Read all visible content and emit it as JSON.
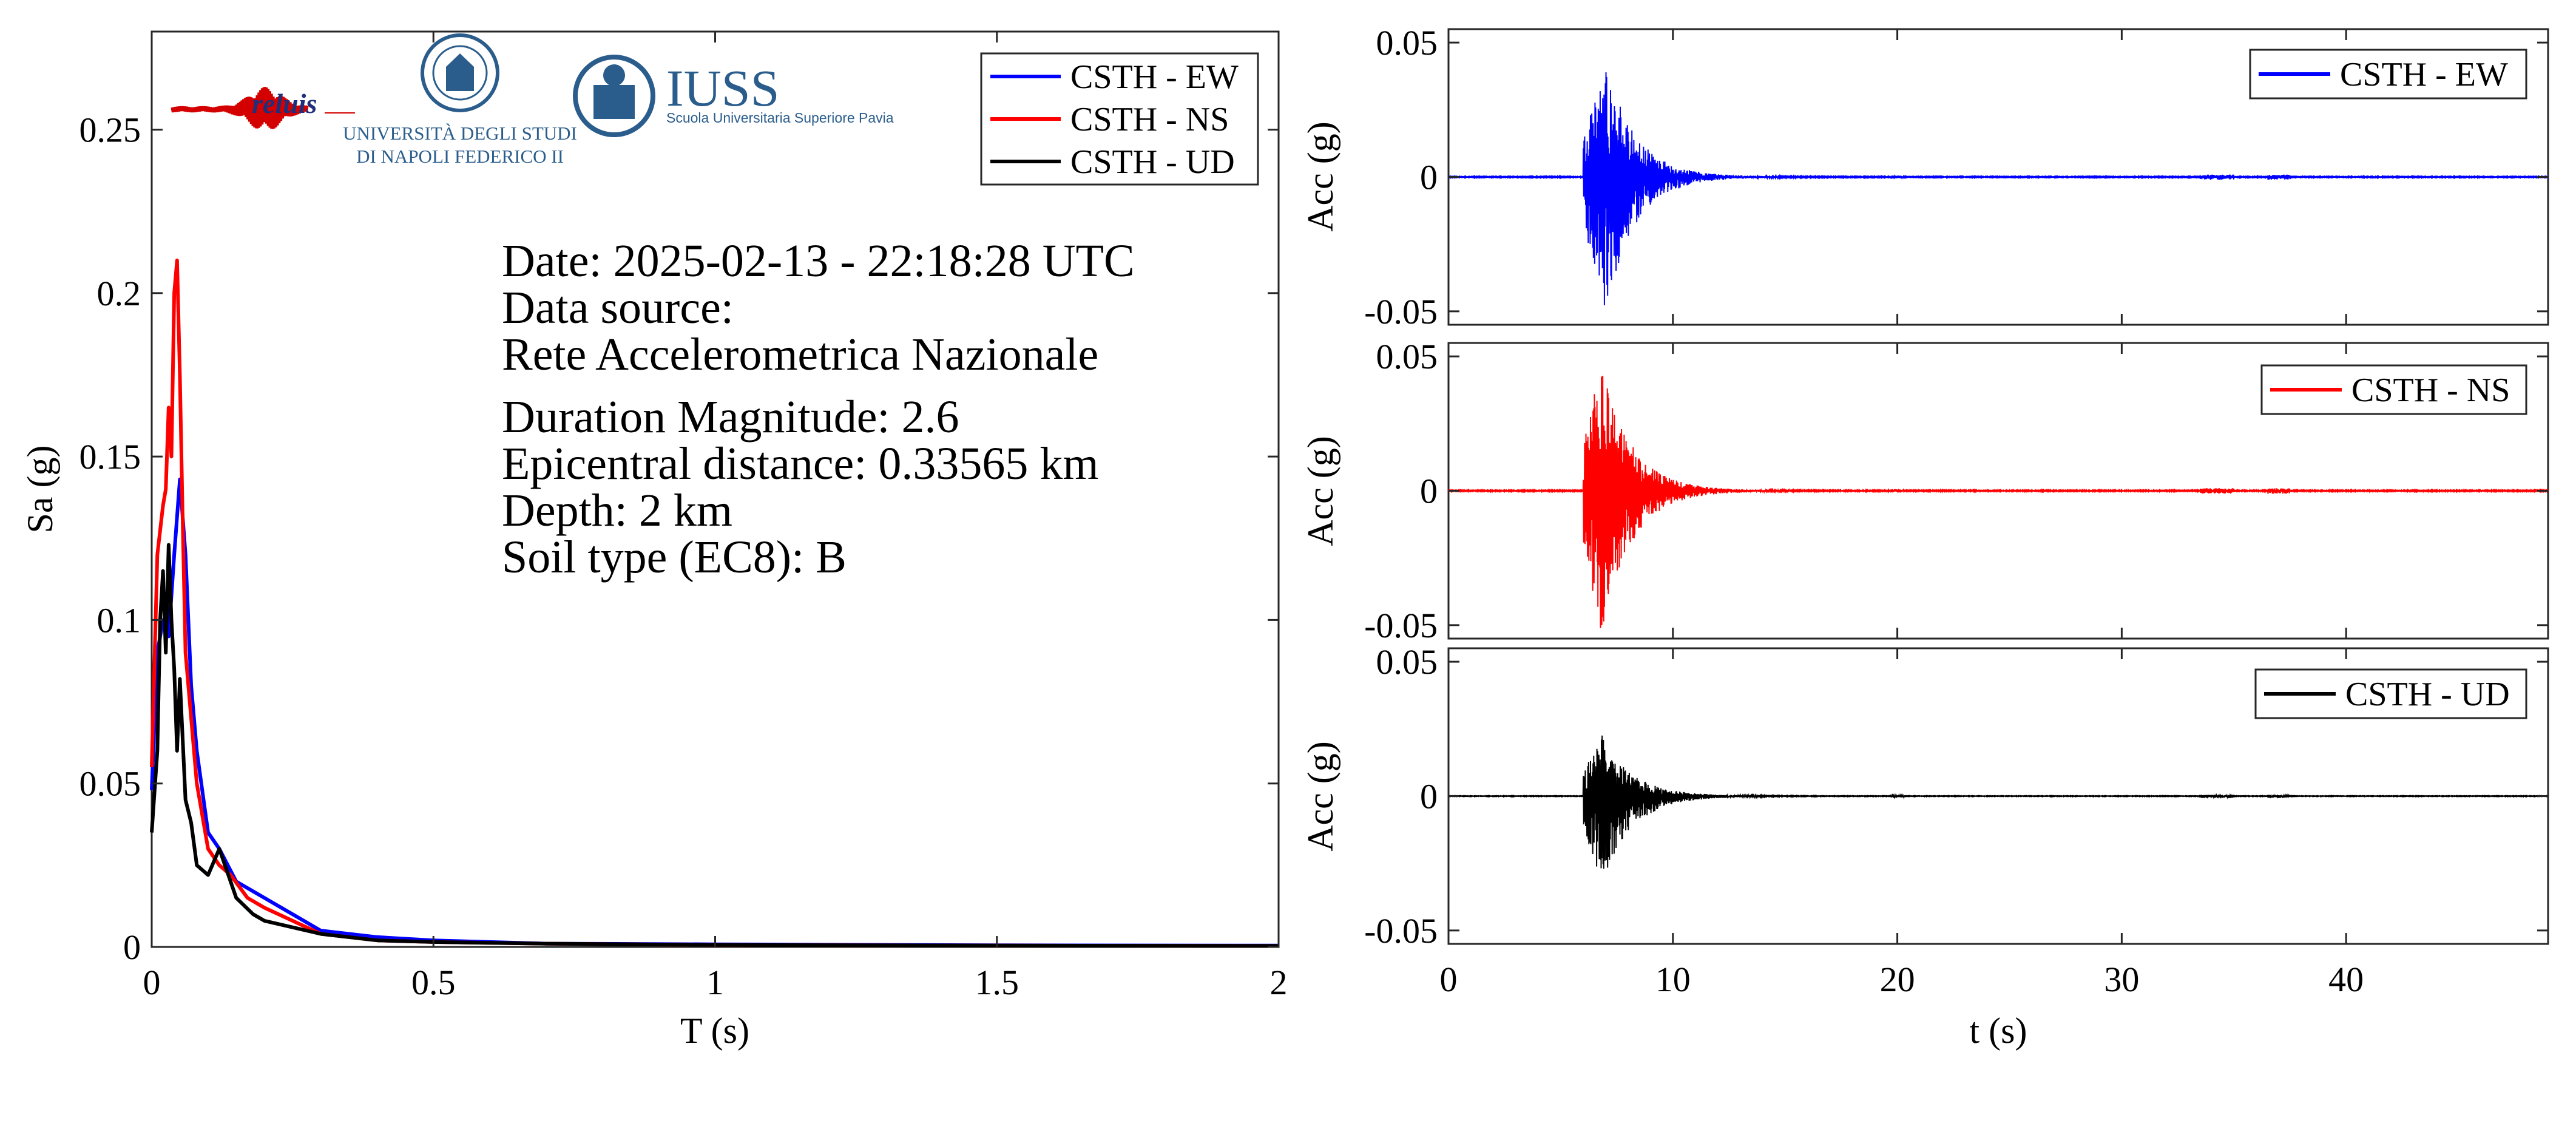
{
  "colors": {
    "ew": "#0000ff",
    "ns": "#ff0000",
    "ud": "#000000",
    "iuss": "#2b5d8c"
  },
  "logos": {
    "reluis": {
      "text": "reluis"
    },
    "unina": {
      "line1": "UNIVERSITÀ DEGLI STUDI",
      "line2": "DI NAPOLI FEDERICO II"
    },
    "iuss": {
      "title": "IUSS",
      "subtitle": "Scuola Universitaria Superiore Pavia"
    }
  },
  "info": {
    "date": "Date: 2025-02-13 - 22:18:28 UTC",
    "source_label": "Data source:",
    "source_name": "Rete Accelerometrica Nazionale",
    "magnitude": "Duration Magnitude: 2.6",
    "distance": "Epicentral distance: 0.33565 km",
    "depth": "Depth: 2 km",
    "soil": "Soil type (EC8): B"
  },
  "chart_data": [
    {
      "type": "line",
      "xlabel": "T (s)",
      "ylabel": "Sa (g)",
      "xlim": [
        0,
        2
      ],
      "ylim": [
        0,
        0.28
      ],
      "xticks": [
        0,
        0.5,
        1,
        1.5,
        2
      ],
      "xtick_labels": [
        "0",
        "0.5",
        "1",
        "1.5",
        "2"
      ],
      "yticks": [
        0,
        0.05,
        0.1,
        0.15,
        0.2,
        0.25
      ],
      "ytick_labels": [
        "0",
        "0.05",
        "0.1",
        "0.15",
        "0.2",
        "0.25"
      ],
      "legend": "top-right",
      "series": [
        {
          "name": "CSTH - EW",
          "color": "#0000ff",
          "x": [
            0,
            0.01,
            0.02,
            0.03,
            0.04,
            0.05,
            0.06,
            0.07,
            0.08,
            0.1,
            0.12,
            0.15,
            0.18,
            0.2,
            0.25,
            0.3,
            0.4,
            0.5,
            0.7,
            1.0,
            1.5,
            2.0
          ],
          "y": [
            0.048,
            0.09,
            0.1,
            0.095,
            0.12,
            0.143,
            0.12,
            0.08,
            0.06,
            0.035,
            0.03,
            0.02,
            0.017,
            0.015,
            0.01,
            0.005,
            0.003,
            0.002,
            0.001,
            0.0008,
            0.0005,
            0.0004
          ]
        },
        {
          "name": "CSTH - NS",
          "color": "#ff0000",
          "x": [
            0,
            0.01,
            0.02,
            0.025,
            0.03,
            0.035,
            0.04,
            0.045,
            0.05,
            0.055,
            0.06,
            0.07,
            0.08,
            0.1,
            0.12,
            0.14,
            0.17,
            0.2,
            0.25,
            0.3,
            0.4,
            0.5,
            0.7,
            1.0,
            1.5,
            2.0
          ],
          "y": [
            0.055,
            0.12,
            0.135,
            0.14,
            0.165,
            0.15,
            0.2,
            0.21,
            0.175,
            0.13,
            0.09,
            0.07,
            0.05,
            0.03,
            0.025,
            0.022,
            0.015,
            0.012,
            0.008,
            0.004,
            0.002,
            0.0015,
            0.001,
            0.0006,
            0.0004,
            0.0003
          ]
        },
        {
          "name": "CSTH - UD",
          "color": "#000000",
          "x": [
            0,
            0.01,
            0.015,
            0.02,
            0.025,
            0.03,
            0.035,
            0.04,
            0.045,
            0.05,
            0.06,
            0.07,
            0.08,
            0.1,
            0.12,
            0.15,
            0.18,
            0.2,
            0.25,
            0.3,
            0.4,
            0.5,
            0.7,
            1.0,
            1.5,
            2.0
          ],
          "y": [
            0.035,
            0.06,
            0.1,
            0.115,
            0.09,
            0.123,
            0.1,
            0.085,
            0.06,
            0.082,
            0.045,
            0.038,
            0.025,
            0.022,
            0.03,
            0.015,
            0.01,
            0.008,
            0.006,
            0.004,
            0.002,
            0.0015,
            0.001,
            0.0006,
            0.0004,
            0.0003
          ]
        }
      ]
    },
    {
      "type": "line",
      "xlabel": "",
      "ylabel": "Acc (g)",
      "xlim": [
        0,
        49
      ],
      "ylim": [
        -0.055,
        0.055
      ],
      "xticks": [
        10,
        20,
        30,
        40
      ],
      "xtick_labels": [],
      "yticks": [
        -0.05,
        0,
        0.05
      ],
      "ytick_labels": [
        "-0.05",
        "0",
        "0.05"
      ],
      "legend": "top-right",
      "series": [
        {
          "name": "CSTH - EW",
          "color": "#0000ff",
          "onset": 6.0,
          "peak_time": 7.0,
          "peak_positive": 0.043,
          "peak_negative": -0.05
        }
      ]
    },
    {
      "type": "line",
      "xlabel": "",
      "ylabel": "Acc (g)",
      "xlim": [
        0,
        49
      ],
      "ylim": [
        -0.055,
        0.055
      ],
      "xticks": [
        10,
        20,
        30,
        40
      ],
      "xtick_labels": [],
      "yticks": [
        -0.05,
        0,
        0.05
      ],
      "ytick_labels": [
        "-0.05",
        "0",
        "0.05"
      ],
      "legend": "top-right",
      "series": [
        {
          "name": "CSTH - NS",
          "color": "#ff0000",
          "onset": 6.0,
          "peak_time": 6.8,
          "peak_positive": 0.048,
          "peak_negative": -0.055
        }
      ]
    },
    {
      "type": "line",
      "xlabel": "t (s)",
      "ylabel": "Acc (g)",
      "xlim": [
        0,
        49
      ],
      "ylim": [
        -0.055,
        0.055
      ],
      "xticks": [
        0,
        10,
        20,
        30,
        40
      ],
      "xtick_labels": [
        "0",
        "10",
        "20",
        "30",
        "40"
      ],
      "yticks": [
        -0.05,
        0,
        0.05
      ],
      "ytick_labels": [
        "-0.05",
        "0",
        "0.05"
      ],
      "legend": "top-right",
      "series": [
        {
          "name": "CSTH - UD",
          "color": "#000000",
          "onset": 6.0,
          "peak_time": 6.8,
          "peak_positive": 0.024,
          "peak_negative": -0.035
        }
      ]
    }
  ]
}
